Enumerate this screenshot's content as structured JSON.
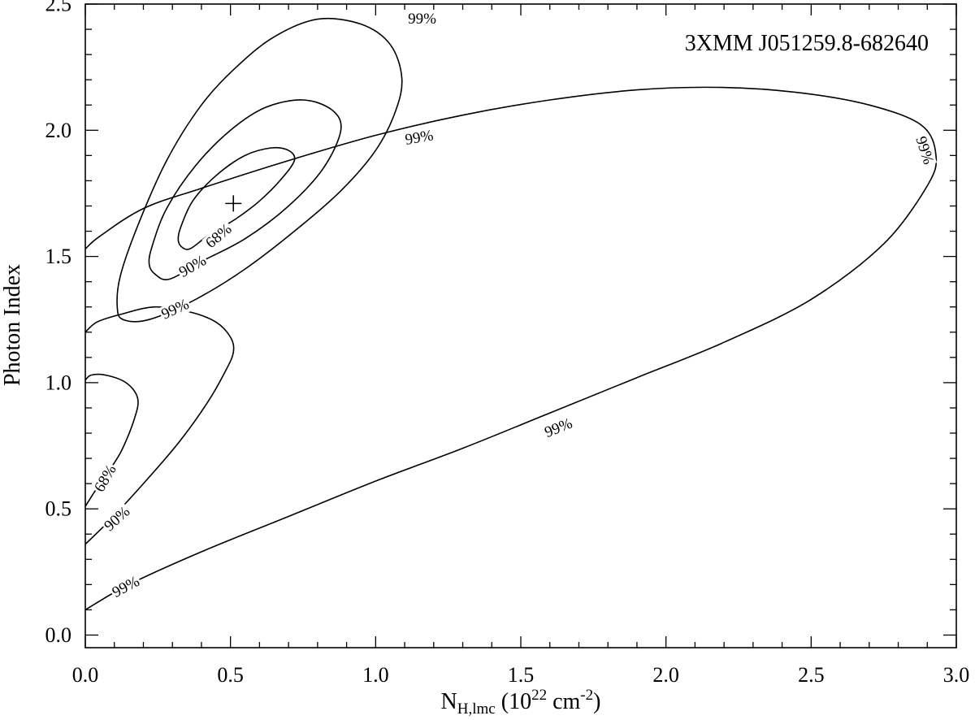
{
  "chart_data": {
    "type": "contour",
    "title": "3XMM J051259.8-682640",
    "xlabel": {
      "main": "N",
      "sub": "H,lmc",
      "pre": " (10",
      "exp": "22",
      "unit": " cm",
      "unit_exp": "-2",
      "post": ")"
    },
    "ylabel": "Photon Index",
    "xlim": [
      0.0,
      3.0
    ],
    "ylim": [
      -0.05,
      2.5
    ],
    "xticks": [
      "0.0",
      "0.5",
      "1.0",
      "1.5",
      "2.0",
      "2.5",
      "3.0"
    ],
    "yticks": [
      "0.0",
      "0.5",
      "1.0",
      "1.5",
      "2.0",
      "2.5"
    ],
    "grid": false,
    "best_fit": {
      "x": 0.51,
      "y": 1.71,
      "marker": "+"
    },
    "contour_regions": [
      {
        "label": "68%",
        "closed": true,
        "points": [
          [
            0.33,
            1.54
          ],
          [
            0.36,
            1.53
          ],
          [
            0.42,
            1.58
          ],
          [
            0.52,
            1.65
          ],
          [
            0.6,
            1.72
          ],
          [
            0.67,
            1.8
          ],
          [
            0.72,
            1.88
          ],
          [
            0.7,
            1.92
          ],
          [
            0.64,
            1.93
          ],
          [
            0.55,
            1.9
          ],
          [
            0.45,
            1.82
          ],
          [
            0.37,
            1.72
          ],
          [
            0.33,
            1.62
          ],
          [
            0.32,
            1.57
          ]
        ]
      },
      {
        "label": "90%",
        "closed": true,
        "points": [
          [
            0.24,
            1.43
          ],
          [
            0.29,
            1.41
          ],
          [
            0.4,
            1.48
          ],
          [
            0.55,
            1.57
          ],
          [
            0.7,
            1.7
          ],
          [
            0.82,
            1.85
          ],
          [
            0.88,
            2.0
          ],
          [
            0.85,
            2.08
          ],
          [
            0.75,
            2.12
          ],
          [
            0.62,
            2.09
          ],
          [
            0.5,
            2.0
          ],
          [
            0.38,
            1.86
          ],
          [
            0.28,
            1.69
          ],
          [
            0.23,
            1.54
          ],
          [
            0.22,
            1.47
          ]
        ]
      },
      {
        "label": "99%",
        "closed": true,
        "points": [
          [
            0.13,
            1.25
          ],
          [
            0.22,
            1.25
          ],
          [
            0.38,
            1.33
          ],
          [
            0.55,
            1.45
          ],
          [
            0.72,
            1.6
          ],
          [
            0.88,
            1.76
          ],
          [
            1.0,
            1.92
          ],
          [
            1.07,
            2.08
          ],
          [
            1.09,
            2.21
          ],
          [
            1.05,
            2.34
          ],
          [
            0.95,
            2.42
          ],
          [
            0.8,
            2.44
          ],
          [
            0.65,
            2.37
          ],
          [
            0.52,
            2.25
          ],
          [
            0.4,
            2.1
          ],
          [
            0.28,
            1.88
          ],
          [
            0.18,
            1.62
          ],
          [
            0.12,
            1.42
          ],
          [
            0.11,
            1.3
          ]
        ]
      },
      {
        "label": "68%",
        "closed": false,
        "points": [
          [
            0.0,
            0.51
          ],
          [
            0.05,
            0.6
          ],
          [
            0.12,
            0.72
          ],
          [
            0.17,
            0.86
          ],
          [
            0.18,
            0.94
          ],
          [
            0.14,
            1.0
          ],
          [
            0.07,
            1.03
          ],
          [
            0.02,
            1.03
          ],
          [
            0.0,
            1.01
          ]
        ]
      },
      {
        "label": "90%",
        "closed": false,
        "points": [
          [
            0.0,
            0.36
          ],
          [
            0.08,
            0.45
          ],
          [
            0.2,
            0.6
          ],
          [
            0.32,
            0.76
          ],
          [
            0.42,
            0.92
          ],
          [
            0.48,
            1.04
          ],
          [
            0.51,
            1.12
          ],
          [
            0.5,
            1.18
          ],
          [
            0.45,
            1.24
          ],
          [
            0.36,
            1.28
          ],
          [
            0.24,
            1.3
          ],
          [
            0.12,
            1.27
          ],
          [
            0.04,
            1.24
          ],
          [
            0.0,
            1.2
          ]
        ]
      },
      {
        "label": "99%",
        "closed": false,
        "points": [
          [
            0.0,
            0.1
          ],
          [
            0.15,
            0.2
          ],
          [
            0.4,
            0.33
          ],
          [
            0.7,
            0.47
          ],
          [
            1.0,
            0.61
          ],
          [
            1.3,
            0.74
          ],
          [
            1.6,
            0.88
          ],
          [
            1.9,
            1.02
          ],
          [
            2.2,
            1.16
          ],
          [
            2.5,
            1.33
          ],
          [
            2.75,
            1.55
          ],
          [
            2.9,
            1.78
          ],
          [
            2.93,
            1.9
          ],
          [
            2.88,
            2.02
          ],
          [
            2.7,
            2.1
          ],
          [
            2.45,
            2.15
          ],
          [
            2.18,
            2.17
          ],
          [
            1.9,
            2.16
          ],
          [
            1.6,
            2.12
          ],
          [
            1.3,
            2.06
          ],
          [
            1.0,
            1.98
          ],
          [
            0.7,
            1.88
          ],
          [
            0.4,
            1.77
          ],
          [
            0.2,
            1.69
          ],
          [
            0.05,
            1.58
          ],
          [
            0.0,
            1.53
          ]
        ]
      }
    ],
    "contour_labels": [
      {
        "text": "99%",
        "x": 1.16,
        "y": 2.44,
        "angle": 0
      },
      {
        "text": "99%",
        "x": 1.15,
        "y": 1.97,
        "angle": -10
      },
      {
        "text": "99%",
        "x": 2.89,
        "y": 1.92,
        "angle": 72
      },
      {
        "text": "68%",
        "x": 0.46,
        "y": 1.58,
        "angle": -40
      },
      {
        "text": "90%",
        "x": 0.37,
        "y": 1.46,
        "angle": -30
      },
      {
        "text": "99%",
        "x": 0.31,
        "y": 1.29,
        "angle": -25
      },
      {
        "text": "99%",
        "x": 1.63,
        "y": 0.82,
        "angle": -22
      },
      {
        "text": "68%",
        "x": 0.07,
        "y": 0.62,
        "angle": -60
      },
      {
        "text": "90%",
        "x": 0.11,
        "y": 0.46,
        "angle": -42
      },
      {
        "text": "99%",
        "x": 0.14,
        "y": 0.19,
        "angle": -28
      }
    ]
  }
}
